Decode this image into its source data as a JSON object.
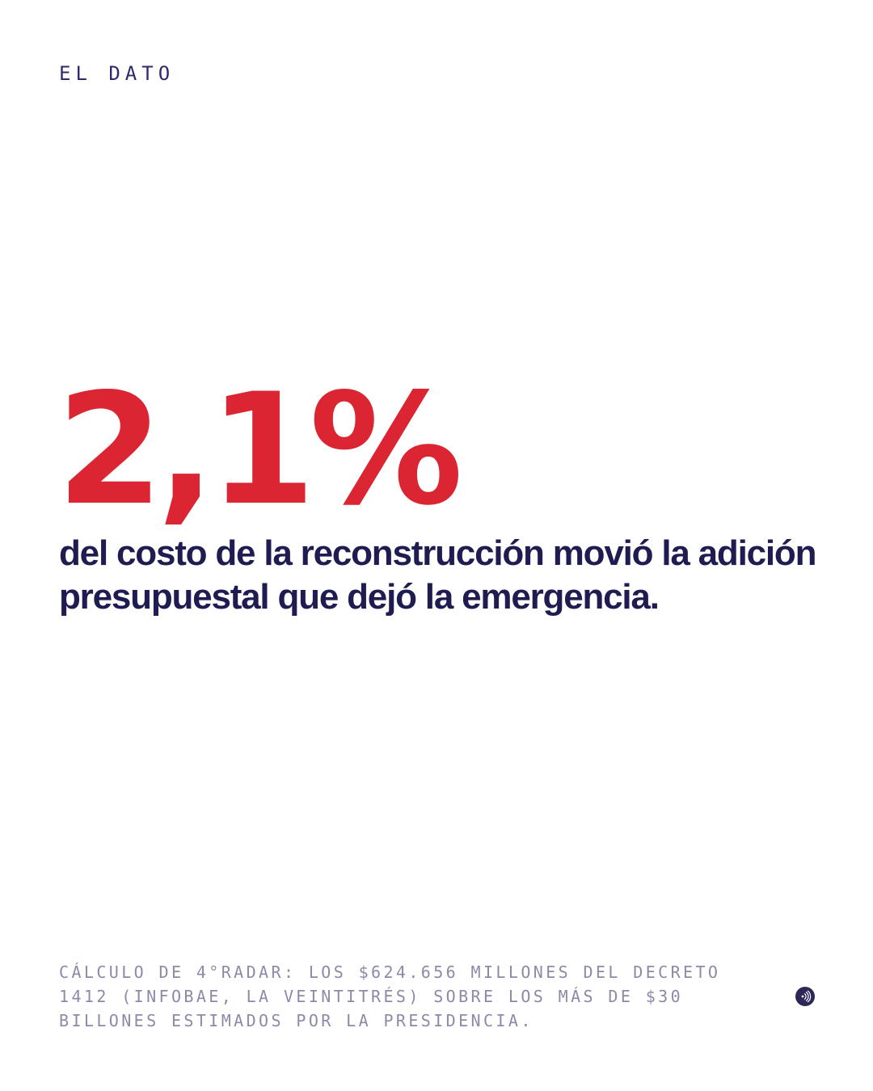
{
  "kicker": "EL DATO",
  "figure": "2,1%",
  "headline": "del costo de la reconstrucción movió la adición presupuestal que dejó la emergencia.",
  "footnote": "CÁLCULO DE 4°RADAR: LOS $624.656 MILLONES DEL DECRETO 1412 (INFOBAE, LA VEINTITRÉS) SOBRE LOS MÁS DE $30 BILLONES ESTIMADOS POR LA PRESIDENCIA.",
  "colors": {
    "accent": "#db2532",
    "text": "#1e1c50",
    "muted": "#8d8aa8",
    "logo": "#2b2757"
  },
  "icons": {
    "brand": "radar-logo-icon"
  }
}
